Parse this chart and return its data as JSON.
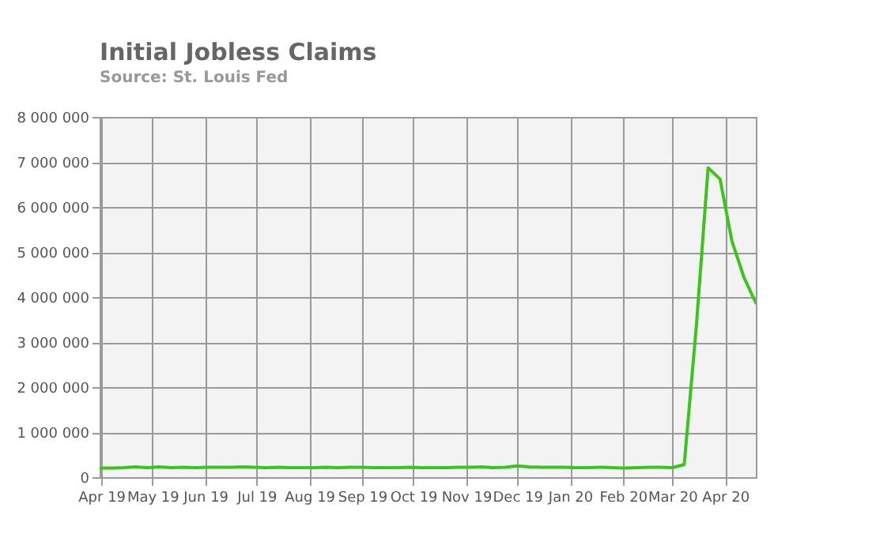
{
  "chart_data": {
    "type": "line",
    "title": "Initial Jobless Claims",
    "annotations": [
      "Source: St. Louis Fed"
    ],
    "x": [
      "2019-03-31",
      "2019-04-07",
      "2019-04-14",
      "2019-04-21",
      "2019-04-28",
      "2019-05-05",
      "2019-05-12",
      "2019-05-19",
      "2019-05-26",
      "2019-06-02",
      "2019-06-09",
      "2019-06-16",
      "2019-06-23",
      "2019-06-30",
      "2019-07-07",
      "2019-07-14",
      "2019-07-21",
      "2019-07-28",
      "2019-08-04",
      "2019-08-11",
      "2019-08-18",
      "2019-08-25",
      "2019-09-01",
      "2019-09-08",
      "2019-09-15",
      "2019-09-22",
      "2019-09-29",
      "2019-10-06",
      "2019-10-13",
      "2019-10-20",
      "2019-10-27",
      "2019-11-03",
      "2019-11-10",
      "2019-11-17",
      "2019-11-24",
      "2019-12-01",
      "2019-12-08",
      "2019-12-15",
      "2019-12-22",
      "2019-12-29",
      "2020-01-05",
      "2020-01-12",
      "2020-01-19",
      "2020-01-26",
      "2020-02-02",
      "2020-02-09",
      "2020-02-16",
      "2020-02-23",
      "2020-03-01",
      "2020-03-08",
      "2020-03-15",
      "2020-03-22",
      "2020-03-29",
      "2020-04-05",
      "2020-04-12",
      "2020-04-19"
    ],
    "series": [
      {
        "color": "#3cc41e",
        "values": [
          200000,
          200000,
          210000,
          230000,
          210000,
          230000,
          210000,
          220000,
          210000,
          220000,
          220000,
          220000,
          230000,
          220000,
          210000,
          220000,
          210000,
          210000,
          210000,
          220000,
          210000,
          220000,
          220000,
          210000,
          210000,
          210000,
          220000,
          210000,
          210000,
          210000,
          220000,
          220000,
          230000,
          210000,
          220000,
          250000,
          230000,
          220000,
          220000,
          220000,
          210000,
          210000,
          220000,
          210000,
          200000,
          210000,
          220000,
          220000,
          210000,
          280000,
          3310000,
          6870000,
          6620000,
          5240000,
          4440000,
          3870000
        ]
      }
    ],
    "xlim": [
      "2019-03-31",
      "2020-04-19"
    ],
    "xticks": [
      {
        "value": "2019-04-01",
        "label": "Apr 19"
      },
      {
        "value": "2019-05-01",
        "label": "May 19"
      },
      {
        "value": "2019-06-01",
        "label": "Jun 19"
      },
      {
        "value": "2019-07-01",
        "label": "Jul 19"
      },
      {
        "value": "2019-08-01",
        "label": "Aug 19"
      },
      {
        "value": "2019-09-01",
        "label": "Sep 19"
      },
      {
        "value": "2019-10-01",
        "label": "Oct 19"
      },
      {
        "value": "2019-11-01",
        "label": "Nov 19"
      },
      {
        "value": "2019-12-01",
        "label": "Dec 19"
      },
      {
        "value": "2020-01-01",
        "label": "Jan 20"
      },
      {
        "value": "2020-02-01",
        "label": "Feb 20"
      },
      {
        "value": "2020-03-01",
        "label": "Mar 20"
      },
      {
        "value": "2020-04-01",
        "label": "Apr 20"
      }
    ],
    "ylim": [
      0,
      8000000
    ],
    "yticks": [
      0,
      {
        "value": 1000000,
        "label": "1 000 000"
      },
      {
        "value": 2000000,
        "label": "2 000 000"
      },
      {
        "value": 3000000,
        "label": "3 000 000"
      },
      {
        "value": 4000000,
        "label": "4 000 000"
      },
      {
        "value": 5000000,
        "label": "5 000 000"
      },
      {
        "value": 6000000,
        "label": "6 000 000"
      },
      {
        "value": 7000000,
        "label": "7 000 000"
      },
      {
        "value": 8000000,
        "label": "8 000 000"
      }
    ],
    "grid": true,
    "marker": "none",
    "line_style": "solid"
  }
}
